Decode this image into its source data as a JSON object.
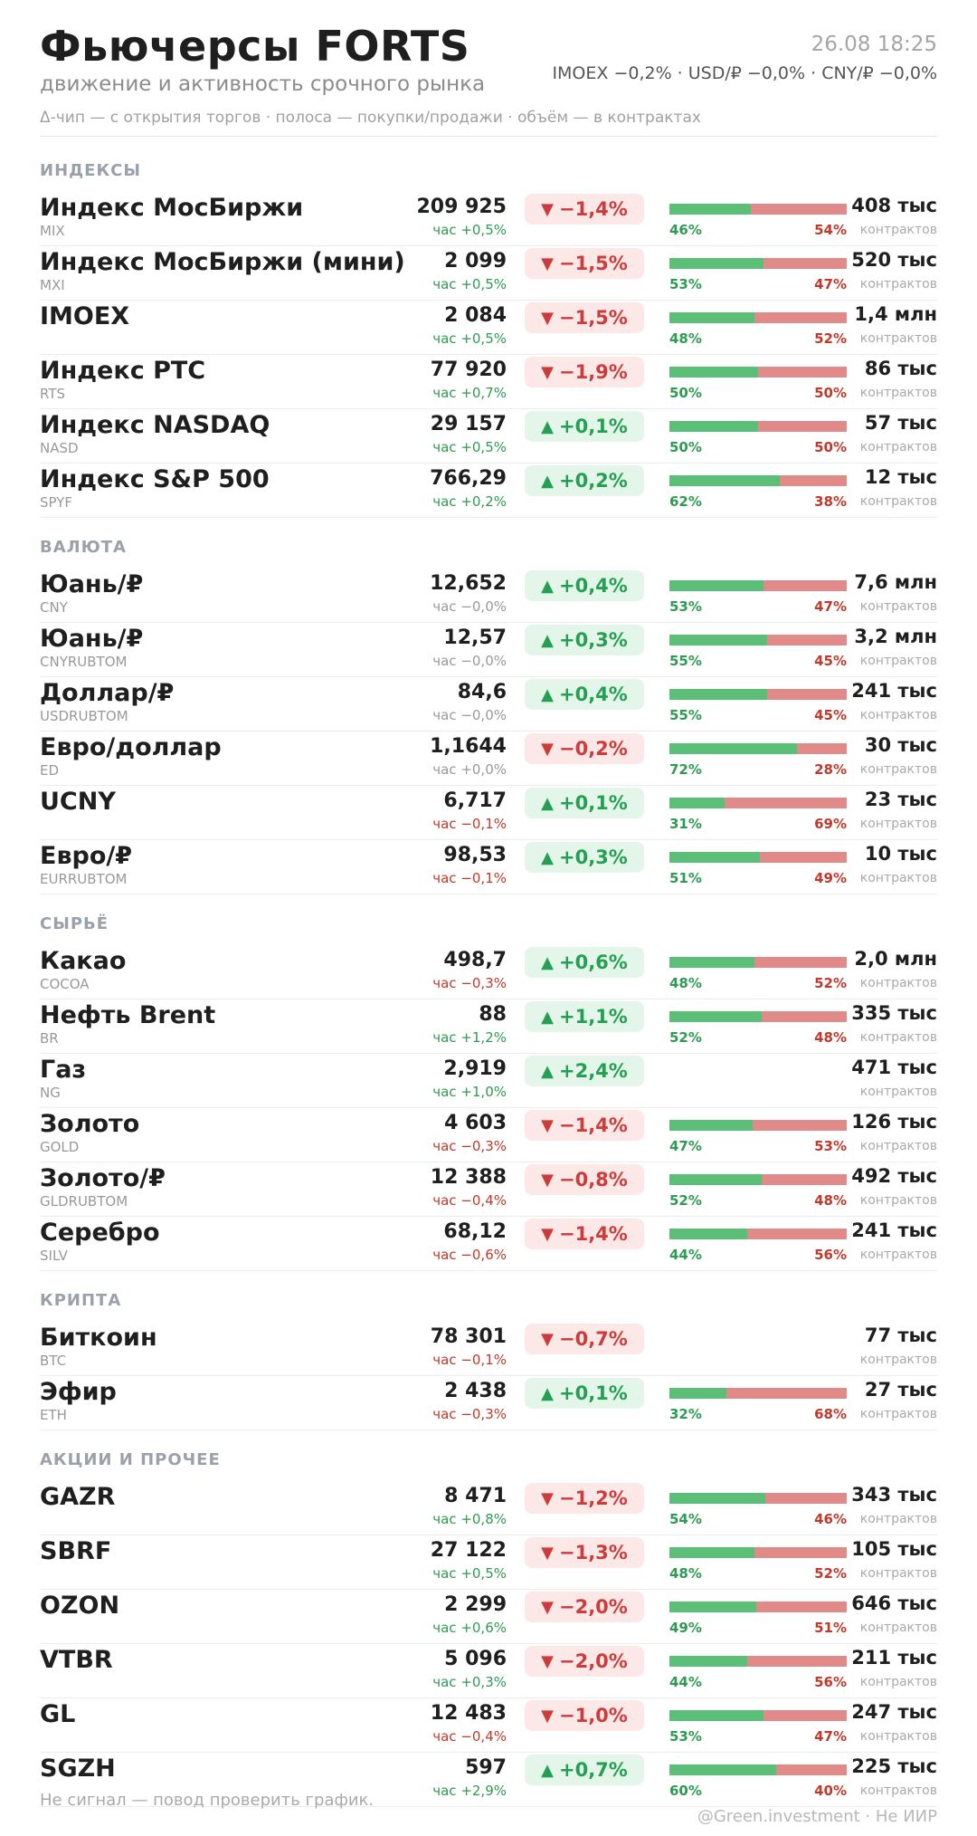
{
  "header": {
    "title": "Фьючерсы FORTS",
    "subtitle": "движение и активность срочного рынка",
    "legend": "Δ-чип — с открытия торгов  ·  полоса — покупки/продажи  ·  объём — в контрактах",
    "datetime": "26.08 18:25",
    "macro": "IMOEX −0,2%  ·  USD/₽ −0,0%  ·  CNY/₽ −0,0%"
  },
  "colors": {
    "up": "#24a052",
    "down": "#cf3b3b",
    "buy_bar": "#5bbf77",
    "sell_bar": "#e08a8a"
  },
  "sections": [
    {
      "title": "ИНДЕКСЫ",
      "rows": [
        {
          "name": "Индекс МосБиржи",
          "ticker": "MIX",
          "price": "209 925",
          "hour": "час +0,5%",
          "hour_dir": "up",
          "change": "−1,4%",
          "dir": "down",
          "buy": 46,
          "buy_label": "46%",
          "sell_label": "54%",
          "volume": "408 тыс",
          "unit": "контрактов"
        },
        {
          "name": "Индекс МосБиржи (мини)",
          "ticker": "MXI",
          "price": "2 099",
          "hour": "час +0,5%",
          "hour_dir": "up",
          "change": "−1,5%",
          "dir": "down",
          "buy": 53,
          "buy_label": "53%",
          "sell_label": "47%",
          "volume": "520 тыс",
          "unit": "контрактов"
        },
        {
          "name": "IMOEX",
          "ticker": "",
          "price": "2 084",
          "hour": "час +0,5%",
          "hour_dir": "up",
          "change": "−1,5%",
          "dir": "down",
          "buy": 48,
          "buy_label": "48%",
          "sell_label": "52%",
          "volume": "1,4 млн",
          "unit": "контрактов"
        },
        {
          "name": "Индекс РТС",
          "ticker": "RTS",
          "price": "77 920",
          "hour": "час +0,7%",
          "hour_dir": "up",
          "change": "−1,9%",
          "dir": "down",
          "buy": 50,
          "buy_label": "50%",
          "sell_label": "50%",
          "volume": "86 тыс",
          "unit": "контрактов"
        },
        {
          "name": "Индекс NASDAQ",
          "ticker": "NASD",
          "price": "29 157",
          "hour": "час +0,5%",
          "hour_dir": "up",
          "change": "+0,1%",
          "dir": "up",
          "buy": 50,
          "buy_label": "50%",
          "sell_label": "50%",
          "volume": "57 тыс",
          "unit": "контрактов"
        },
        {
          "name": "Индекс S&P 500",
          "ticker": "SPYF",
          "price": "766,29",
          "hour": "час +0,2%",
          "hour_dir": "up",
          "change": "+0,2%",
          "dir": "up",
          "buy": 62,
          "buy_label": "62%",
          "sell_label": "38%",
          "volume": "12 тыс",
          "unit": "контрактов"
        }
      ]
    },
    {
      "title": "ВАЛЮТА",
      "rows": [
        {
          "name": "Юань/₽",
          "ticker": "CNY",
          "price": "12,652",
          "hour": "час −0,0%",
          "hour_dir": "flat",
          "change": "+0,4%",
          "dir": "up",
          "buy": 53,
          "buy_label": "53%",
          "sell_label": "47%",
          "volume": "7,6 млн",
          "unit": "контрактов"
        },
        {
          "name": "Юань/₽",
          "ticker": "CNYRUBTOM",
          "price": "12,57",
          "hour": "час −0,0%",
          "hour_dir": "flat",
          "change": "+0,3%",
          "dir": "up",
          "buy": 55,
          "buy_label": "55%",
          "sell_label": "45%",
          "volume": "3,2 млн",
          "unit": "контрактов"
        },
        {
          "name": "Доллар/₽",
          "ticker": "USDRUBTOM",
          "price": "84,6",
          "hour": "час −0,0%",
          "hour_dir": "flat",
          "change": "+0,4%",
          "dir": "up",
          "buy": 55,
          "buy_label": "55%",
          "sell_label": "45%",
          "volume": "241 тыс",
          "unit": "контрактов"
        },
        {
          "name": "Евро/доллар",
          "ticker": "ED",
          "price": "1,1644",
          "hour": "час +0,0%",
          "hour_dir": "flat",
          "change": "−0,2%",
          "dir": "down",
          "buy": 72,
          "buy_label": "72%",
          "sell_label": "28%",
          "volume": "30 тыс",
          "unit": "контрактов"
        },
        {
          "name": "UCNY",
          "ticker": "",
          "price": "6,717",
          "hour": "час −0,1%",
          "hour_dir": "down",
          "change": "+0,1%",
          "dir": "up",
          "buy": 31,
          "buy_label": "31%",
          "sell_label": "69%",
          "volume": "23 тыс",
          "unit": "контрактов"
        },
        {
          "name": "Евро/₽",
          "ticker": "EURRUBTOM",
          "price": "98,53",
          "hour": "час −0,1%",
          "hour_dir": "down",
          "change": "+0,3%",
          "dir": "up",
          "buy": 51,
          "buy_label": "51%",
          "sell_label": "49%",
          "volume": "10 тыс",
          "unit": "контрактов"
        }
      ]
    },
    {
      "title": "СЫРЬЁ",
      "rows": [
        {
          "name": "Какао",
          "ticker": "COCOA",
          "price": "498,7",
          "hour": "час −0,3%",
          "hour_dir": "down",
          "change": "+0,6%",
          "dir": "up",
          "buy": 48,
          "buy_label": "48%",
          "sell_label": "52%",
          "volume": "2,0 млн",
          "unit": "контрактов"
        },
        {
          "name": "Нефть Brent",
          "ticker": "BR",
          "price": "88",
          "hour": "час +1,2%",
          "hour_dir": "up",
          "change": "+1,1%",
          "dir": "up",
          "buy": 52,
          "buy_label": "52%",
          "sell_label": "48%",
          "volume": "335 тыс",
          "unit": "контрактов"
        },
        {
          "name": "Газ",
          "ticker": "NG",
          "price": "2,919",
          "hour": "час +1,0%",
          "hour_dir": "up",
          "change": "+2,4%",
          "dir": "up",
          "buy": null,
          "buy_label": "",
          "sell_label": "",
          "volume": "471 тыс",
          "unit": "контрактов"
        },
        {
          "name": "Золото",
          "ticker": "GOLD",
          "price": "4 603",
          "hour": "час −0,3%",
          "hour_dir": "down",
          "change": "−1,4%",
          "dir": "down",
          "buy": 47,
          "buy_label": "47%",
          "sell_label": "53%",
          "volume": "126 тыс",
          "unit": "контрактов"
        },
        {
          "name": "Золото/₽",
          "ticker": "GLDRUBTOM",
          "price": "12 388",
          "hour": "час −0,4%",
          "hour_dir": "down",
          "change": "−0,8%",
          "dir": "down",
          "buy": 52,
          "buy_label": "52%",
          "sell_label": "48%",
          "volume": "492 тыс",
          "unit": "контрактов"
        },
        {
          "name": "Серебро",
          "ticker": "SILV",
          "price": "68,12",
          "hour": "час −0,6%",
          "hour_dir": "down",
          "change": "−1,4%",
          "dir": "down",
          "buy": 44,
          "buy_label": "44%",
          "sell_label": "56%",
          "volume": "241 тыс",
          "unit": "контрактов"
        }
      ]
    },
    {
      "title": "КРИПТА",
      "rows": [
        {
          "name": "Биткоин",
          "ticker": "BTC",
          "price": "78 301",
          "hour": "час −0,1%",
          "hour_dir": "down",
          "change": "−0,7%",
          "dir": "down",
          "buy": null,
          "buy_label": "",
          "sell_label": "",
          "volume": "77 тыс",
          "unit": "контрактов"
        },
        {
          "name": "Эфир",
          "ticker": "ETH",
          "price": "2 438",
          "hour": "час −0,3%",
          "hour_dir": "down",
          "change": "+0,1%",
          "dir": "up",
          "buy": 32,
          "buy_label": "32%",
          "sell_label": "68%",
          "volume": "27 тыс",
          "unit": "контрактов"
        }
      ]
    },
    {
      "title": "АКЦИИ И ПРОЧЕЕ",
      "rows": [
        {
          "name": "GAZR",
          "ticker": "",
          "price": "8 471",
          "hour": "час +0,8%",
          "hour_dir": "up",
          "change": "−1,2%",
          "dir": "down",
          "buy": 54,
          "buy_label": "54%",
          "sell_label": "46%",
          "volume": "343 тыс",
          "unit": "контрактов"
        },
        {
          "name": "SBRF",
          "ticker": "",
          "price": "27 122",
          "hour": "час +0,5%",
          "hour_dir": "up",
          "change": "−1,3%",
          "dir": "down",
          "buy": 48,
          "buy_label": "48%",
          "sell_label": "52%",
          "volume": "105 тыс",
          "unit": "контрактов"
        },
        {
          "name": "OZON",
          "ticker": "",
          "price": "2 299",
          "hour": "час +0,6%",
          "hour_dir": "up",
          "change": "−2,0%",
          "dir": "down",
          "buy": 49,
          "buy_label": "49%",
          "sell_label": "51%",
          "volume": "646 тыс",
          "unit": "контрактов"
        },
        {
          "name": "VTBR",
          "ticker": "",
          "price": "5 096",
          "hour": "час +0,3%",
          "hour_dir": "up",
          "change": "−2,0%",
          "dir": "down",
          "buy": 44,
          "buy_label": "44%",
          "sell_label": "56%",
          "volume": "211 тыс",
          "unit": "контрактов"
        },
        {
          "name": "GL",
          "ticker": "",
          "price": "12 483",
          "hour": "час −0,4%",
          "hour_dir": "down",
          "change": "−1,0%",
          "dir": "down",
          "buy": 53,
          "buy_label": "53%",
          "sell_label": "47%",
          "volume": "247 тыс",
          "unit": "контрактов"
        },
        {
          "name": "SGZH",
          "ticker": "",
          "price": "597",
          "hour": "час +2,9%",
          "hour_dir": "up",
          "change": "+0,7%",
          "dir": "up",
          "buy": 60,
          "buy_label": "60%",
          "sell_label": "40%",
          "volume": "225 тыс",
          "unit": "контрактов"
        }
      ]
    }
  ],
  "footer": {
    "note": "Не сигнал — повод проверить график.",
    "credit": "@Green.investment · Не ИИР"
  }
}
